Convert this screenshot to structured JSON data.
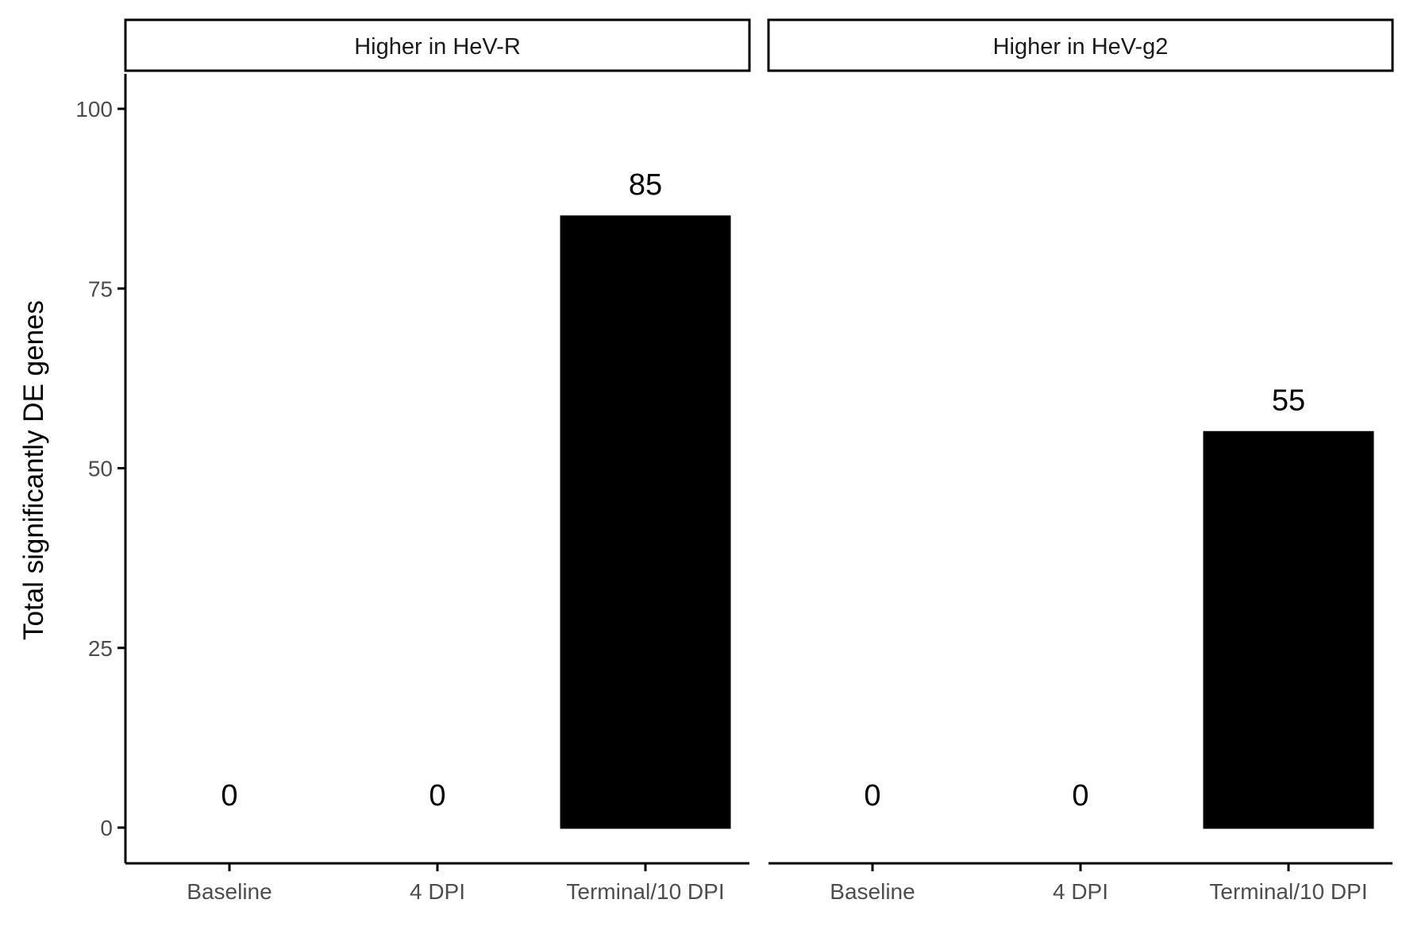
{
  "chart_data": {
    "type": "bar",
    "ylabel": "Total significantly DE genes",
    "xlabel": "",
    "ylim": [
      -5,
      105
    ],
    "yticks": [
      0,
      25,
      50,
      75,
      100
    ],
    "grid": false,
    "categories": [
      "Baseline",
      "4 DPI",
      "Terminal/10 DPI"
    ],
    "facets": [
      {
        "title": "Higher in HeV-R",
        "values": [
          0,
          0,
          85
        ]
      },
      {
        "title": "Higher in HeV-g2",
        "values": [
          0,
          0,
          55
        ]
      }
    ],
    "bar_color": "#000000"
  }
}
